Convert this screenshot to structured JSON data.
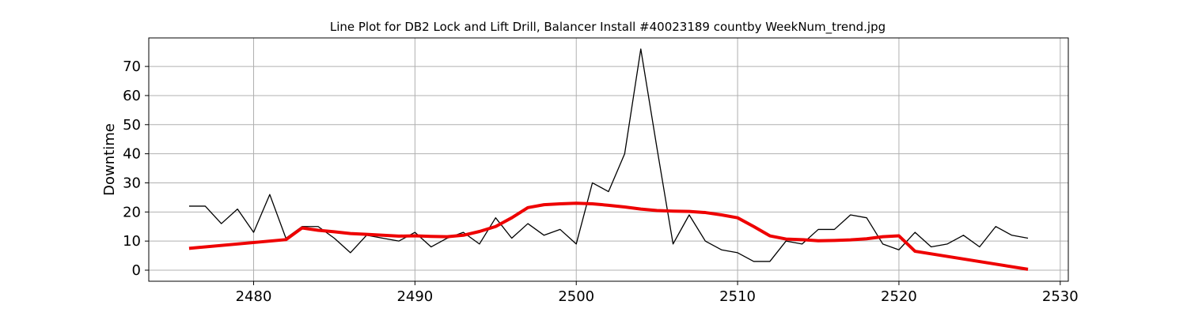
{
  "chart_data": {
    "type": "line",
    "title": "Line Plot for DB2 Lock and Lift Drill, Balancer Install #40023189 countby WeekNum_trend.jpg",
    "xlabel": "",
    "ylabel": "Downtime",
    "xlim": [
      2473.5,
      2530.5
    ],
    "ylim": [
      -3.8,
      79.8
    ],
    "xticks": [
      2480,
      2490,
      2500,
      2510,
      2520,
      2530
    ],
    "yticks": [
      0,
      10,
      20,
      30,
      40,
      50,
      60,
      70
    ],
    "grid": true,
    "series": [
      {
        "color": "#000000",
        "x": [
          2476,
          2477,
          2478,
          2479,
          2480,
          2481,
          2482,
          2483,
          2484,
          2485,
          2486,
          2487,
          2488,
          2489,
          2490,
          2491,
          2492,
          2493,
          2494,
          2495,
          2496,
          2497,
          2498,
          2499,
          2500,
          2501,
          2502,
          2503,
          2504,
          2505,
          2506,
          2507,
          2508,
          2509,
          2510,
          2511,
          2512,
          2513,
          2514,
          2515,
          2516,
          2517,
          2518,
          2519,
          2520,
          2521,
          2522,
          2523,
          2524,
          2525,
          2526,
          2527,
          2528
        ],
        "y": [
          22,
          22,
          16,
          21,
          13,
          26,
          11,
          15,
          15,
          11,
          6,
          12,
          11,
          10,
          13,
          8,
          11,
          13,
          9,
          18,
          11,
          16,
          12,
          14,
          9,
          30,
          27,
          40,
          76,
          42,
          9,
          19,
          10,
          7,
          6,
          3,
          3,
          10,
          9,
          14,
          14,
          19,
          18,
          9,
          7,
          13,
          8,
          9,
          12,
          8,
          15,
          12,
          11
        ]
      },
      {
        "color": "#ee0000",
        "x": [
          2476,
          2482,
          2483,
          2484,
          2485,
          2486,
          2487,
          2488,
          2489,
          2490,
          2491,
          2492,
          2493,
          2494,
          2495,
          2496,
          2497,
          2498,
          2499,
          2500,
          2501,
          2502,
          2503,
          2504,
          2505,
          2506,
          2507,
          2508,
          2509,
          2510,
          2511,
          2512,
          2513,
          2514,
          2515,
          2516,
          2517,
          2518,
          2519,
          2520,
          2521,
          2528
        ],
        "y": [
          7.5,
          10.5,
          14.5,
          13.7,
          13.2,
          12.6,
          12.3,
          12.0,
          11.7,
          11.8,
          11.6,
          11.5,
          12.0,
          13.3,
          15.0,
          18.0,
          21.5,
          22.5,
          22.8,
          23.0,
          22.8,
          22.3,
          21.7,
          21.0,
          20.5,
          20.3,
          20.2,
          19.8,
          19.0,
          18.0,
          15.0,
          11.8,
          10.7,
          10.5,
          10.1,
          10.2,
          10.4,
          10.8,
          11.5,
          11.8,
          6.5,
          0.3
        ]
      }
    ]
  }
}
